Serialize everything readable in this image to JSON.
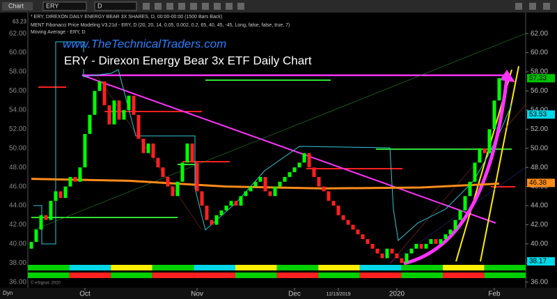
{
  "toolbar": {
    "tab": "Chart",
    "symbol": "ERY",
    "interval": "D"
  },
  "info_lines": [
    "* ERY, DIREXON DAILY ENERGY BEAR 3X SHARES, D, 00:00-00:00 (1500 Bars Back)",
    "MENT Fibonacci Price Modeling V3.21d - ERY, D (20, 20, 14, 0.05, 0.002, 0.2, 65, 40, 45, -45, Long, false, false, true, 7)",
    "Moving Average - ERY, D"
  ],
  "watermark": "www.TheTechnicalTraders.com",
  "copyright": "© eSignal, 2020",
  "corner_label": "Dyn",
  "chart_data": {
    "type": "candlestick",
    "title": "ERY - Direxon Energy Bear 3x ETF Daily Chart",
    "up_color": "#00ff00",
    "down_color": "#ff2020",
    "open": [
      39.5,
      40.2,
      41.5,
      43.0,
      42.5,
      44.5,
      45.5,
      44.8,
      46.0,
      47.0,
      46.5,
      48.0,
      51.5,
      53.5,
      56.0,
      57.0,
      54.5,
      52.5,
      55.0,
      53.0,
      54.0,
      55.5,
      53.5,
      51.0,
      49.5,
      50.5,
      49.0,
      48.0,
      47.0,
      46.0,
      45.0,
      46.5,
      48.5,
      50.5,
      48.5,
      45.5,
      44.0,
      42.5,
      42.0,
      43.0,
      43.5,
      44.0,
      44.5,
      44.0,
      45.0,
      45.5,
      46.0,
      46.5,
      47.0,
      45.5,
      45.0,
      46.0,
      46.5,
      47.0,
      47.5,
      48.0,
      48.5,
      49.5,
      48.0,
      47.0,
      46.0,
      45.5,
      44.5,
      44.0,
      43.0,
      42.5,
      42.0,
      41.5,
      41.0,
      40.5,
      40.0,
      39.5,
      39.0,
      38.5,
      39.5,
      39.0,
      38.5,
      38.0,
      39.0,
      39.5,
      40.0,
      39.5,
      40.0,
      40.5,
      40.0,
      40.5,
      41.0,
      41.5,
      42.5,
      43.5,
      45.0,
      46.5,
      48.5,
      50.0,
      49.5,
      52.0,
      55.0
    ],
    "close": [
      40.2,
      41.5,
      43.0,
      42.5,
      44.5,
      45.5,
      44.8,
      46.0,
      47.0,
      46.5,
      48.0,
      51.5,
      53.5,
      56.0,
      57.0,
      54.5,
      52.5,
      55.0,
      53.0,
      54.0,
      55.5,
      53.5,
      51.0,
      49.5,
      50.5,
      49.0,
      48.0,
      47.0,
      46.0,
      45.0,
      46.5,
      48.5,
      50.5,
      48.5,
      45.5,
      44.0,
      42.5,
      42.0,
      43.0,
      43.5,
      44.0,
      44.5,
      44.0,
      45.0,
      45.5,
      46.0,
      46.5,
      47.0,
      45.5,
      45.0,
      46.0,
      46.5,
      47.0,
      47.5,
      48.0,
      48.5,
      49.5,
      48.0,
      47.0,
      46.0,
      45.5,
      44.5,
      44.0,
      43.0,
      42.5,
      42.0,
      41.5,
      41.0,
      40.5,
      40.0,
      39.5,
      39.0,
      38.5,
      39.5,
      39.0,
      38.5,
      38.0,
      39.0,
      39.5,
      40.0,
      39.5,
      40.0,
      40.5,
      40.0,
      40.5,
      41.0,
      41.5,
      42.5,
      43.5,
      45.0,
      46.5,
      48.5,
      50.0,
      49.5,
      52.0,
      55.0,
      57.33
    ],
    "moving_average": {
      "name": "Moving Average",
      "color": "#ff8c1a",
      "x": [
        0,
        20,
        40,
        60,
        80,
        96
      ],
      "values": [
        46.8,
        46.6,
        46.0,
        45.8,
        45.9,
        46.3
      ]
    },
    "x_labels": [
      {
        "index": 11,
        "label": "Oct"
      },
      {
        "index": 34,
        "label": "Nov"
      },
      {
        "index": 54,
        "label": "Dec"
      },
      {
        "index": 63,
        "label": "12/13/2019"
      },
      {
        "index": 75,
        "label": "2020"
      },
      {
        "index": 95,
        "label": "Feb"
      }
    ],
    "ylim": [
      35.4,
      64.2
    ],
    "yticks": [
      {
        "value": 36,
        "label": "36.00"
      },
      {
        "value": 38,
        "label": "38.00"
      },
      {
        "value": 40,
        "label": "40.00"
      },
      {
        "value": 42,
        "label": "42.00"
      },
      {
        "value": 44,
        "label": "44.00"
      },
      {
        "value": 46,
        "label": "46.00"
      },
      {
        "value": 48,
        "label": "48.00"
      },
      {
        "value": 50,
        "label": "50.00"
      },
      {
        "value": 52,
        "label": "52.00"
      },
      {
        "value": 54,
        "label": "54.00"
      },
      {
        "value": 56,
        "label": "56.00"
      },
      {
        "value": 58,
        "label": "58.00"
      },
      {
        "value": 60,
        "label": "60.00"
      },
      {
        "value": 62,
        "label": "62.00"
      }
    ],
    "price_markers": [
      {
        "value": 57.33,
        "label": "57.33",
        "color": "#00c000"
      },
      {
        "value": 53.53,
        "label": "53.53",
        "color": "#00d8e8"
      },
      {
        "value": 46.38,
        "label": "46.38",
        "color": "#ff8c1a"
      },
      {
        "value": 38.17,
        "label": "38.17",
        "color": "#00d8e8"
      }
    ],
    "top_value": {
      "value": 63.23,
      "label": "63.23"
    }
  }
}
